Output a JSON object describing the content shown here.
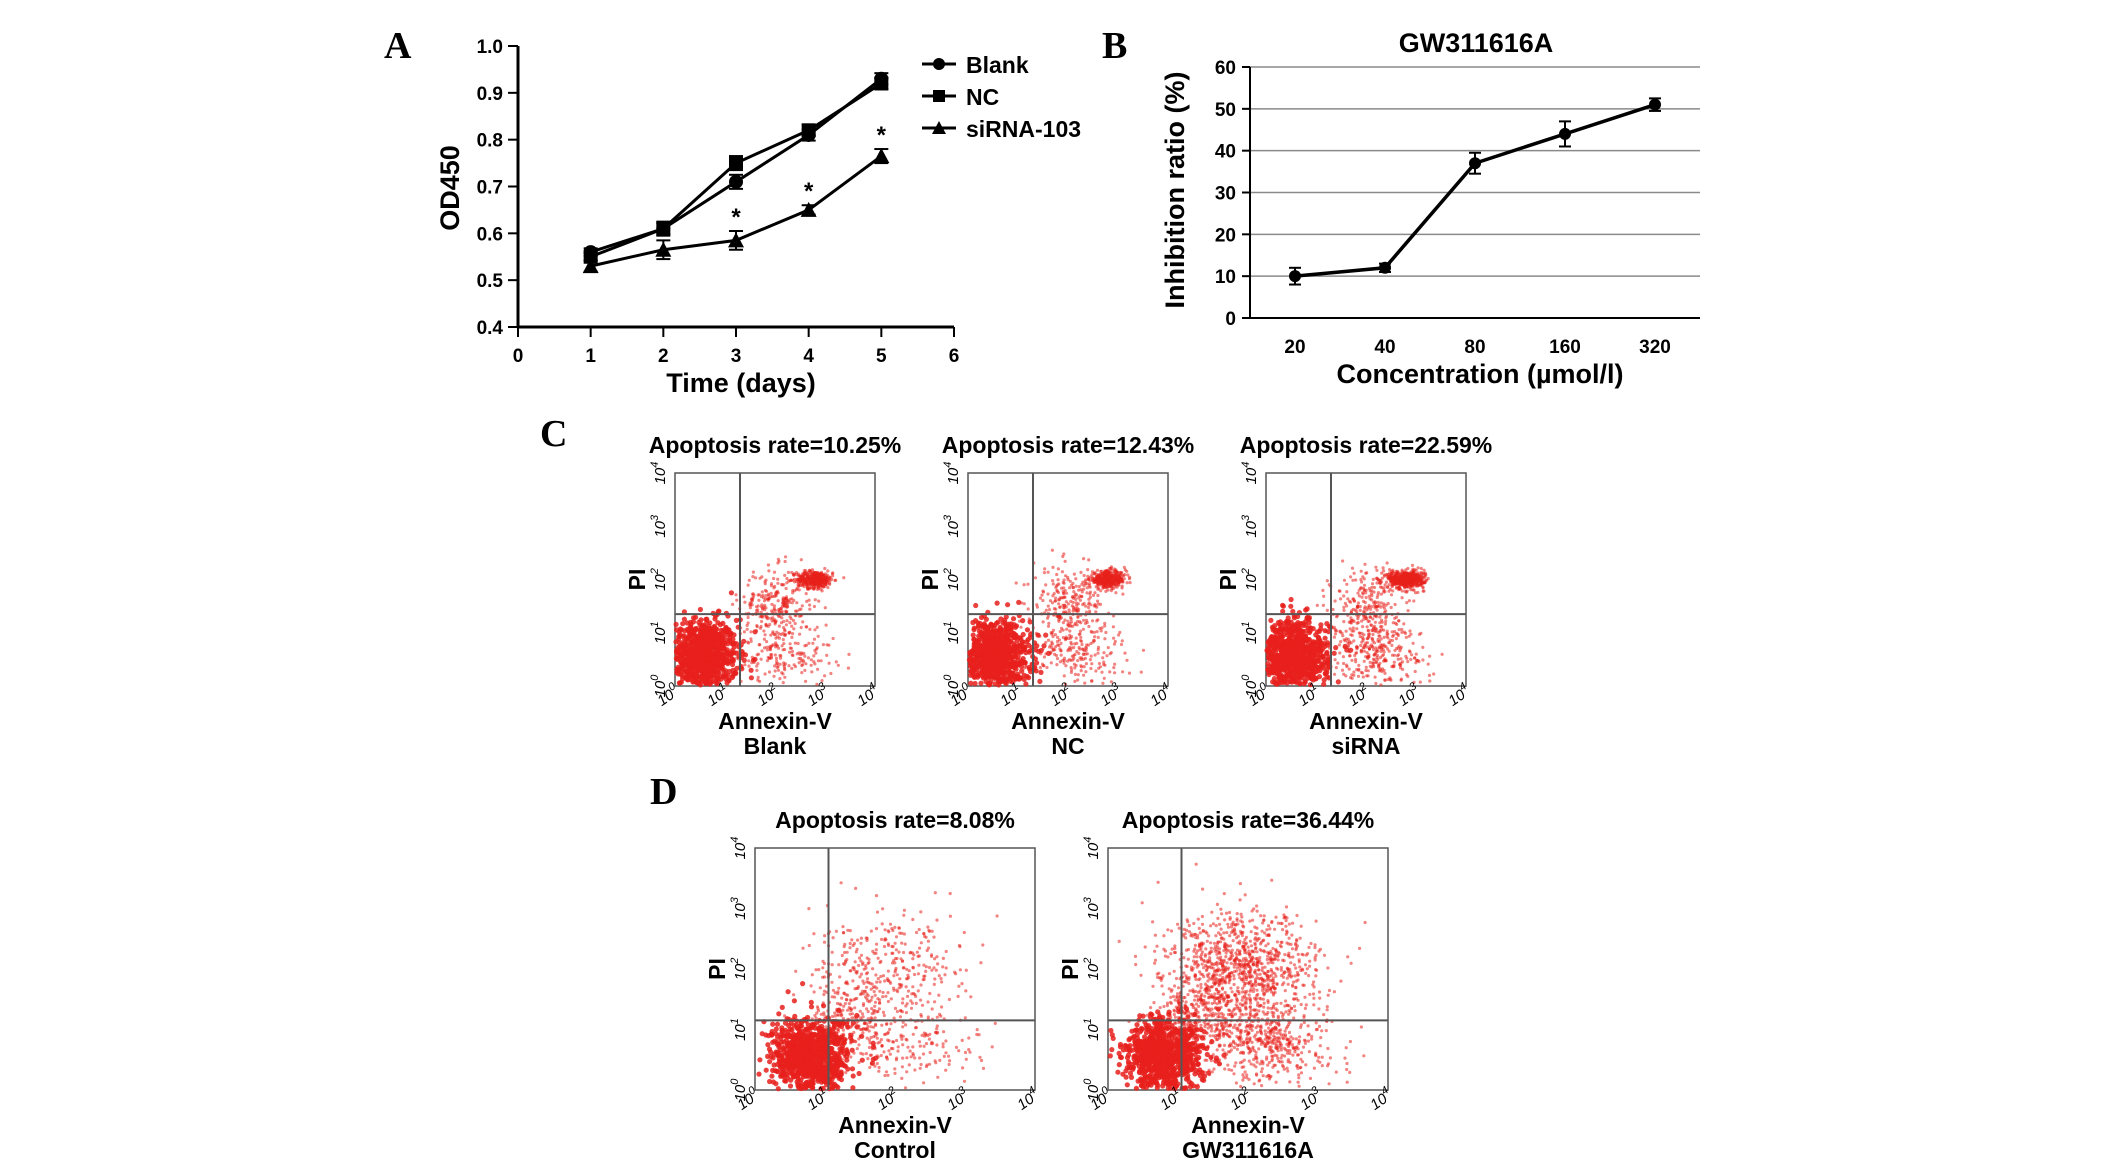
{
  "figure": {
    "panel_labels": [
      "A",
      "B",
      "C",
      "D"
    ]
  },
  "chart_data": [
    {
      "panel": "A",
      "type": "line",
      "title": "",
      "xlabel": "Time (days)",
      "ylabel": "OD450",
      "xlim": [
        0,
        6
      ],
      "ylim": [
        0.4,
        1.0
      ],
      "xticks": [
        "0",
        "1",
        "2",
        "3",
        "4",
        "5",
        "6"
      ],
      "yticks": [
        "0.4",
        "0.5",
        "0.6",
        "0.7",
        "0.8",
        "0.9",
        "1.0"
      ],
      "x": [
        1,
        2,
        3,
        4,
        5
      ],
      "series": [
        {
          "name": "Blank",
          "marker": "circle",
          "values": [
            0.56,
            0.61,
            0.71,
            0.81,
            0.93
          ],
          "errors": [
            0.008,
            0.012,
            0.015,
            0.012,
            0.012
          ]
        },
        {
          "name": "NC",
          "marker": "square",
          "values": [
            0.55,
            0.61,
            0.75,
            0.82,
            0.92
          ],
          "errors": [
            0.008,
            0.015,
            0.015,
            0.012,
            0.012
          ]
        },
        {
          "name": "siRNA-103",
          "marker": "triangle",
          "values": [
            0.53,
            0.565,
            0.585,
            0.65,
            0.765
          ],
          "errors": [
            0.012,
            0.02,
            0.02,
            0.01,
            0.015
          ]
        }
      ],
      "annotations": [
        {
          "x": 3,
          "text": "*"
        },
        {
          "x": 4,
          "text": "*"
        },
        {
          "x": 5,
          "text": "*"
        }
      ]
    },
    {
      "panel": "B",
      "type": "line",
      "title": "GW311616A",
      "xlabel": "Concentration (µmol/l)",
      "ylabel": "Inhibition ratio (%)",
      "ylim": [
        0,
        60
      ],
      "yticks": [
        "0",
        "10",
        "20",
        "30",
        "40",
        "50",
        "60"
      ],
      "grid": true,
      "categories": [
        "20",
        "40",
        "80",
        "160",
        "320"
      ],
      "series": [
        {
          "name": "Inhibition ratio",
          "values": [
            10,
            12,
            37,
            44,
            51
          ],
          "errors": [
            2,
            1,
            2.5,
            3,
            1.5
          ]
        }
      ]
    }
  ],
  "flow_plots": {
    "x_ticks": [
      "10",
      "10",
      "10",
      "10",
      "10"
    ],
    "tick_exponents": [
      "0",
      "1",
      "2",
      "3",
      "4"
    ],
    "x_label": "Annexin-V",
    "y_label": "PI",
    "point_color": "#e8201c",
    "panel_c": [
      {
        "title": "Apoptosis rate=10.25%",
        "group": "Blank"
      },
      {
        "title": "Apoptosis rate=12.43%",
        "group": "NC"
      },
      {
        "title": "Apoptosis rate=22.59%",
        "group": "siRNA"
      }
    ],
    "panel_d": [
      {
        "title": "Apoptosis rate=8.08%",
        "group": "Control"
      },
      {
        "title": "Apoptosis rate=36.44%",
        "group": "GW311616A"
      }
    ]
  }
}
